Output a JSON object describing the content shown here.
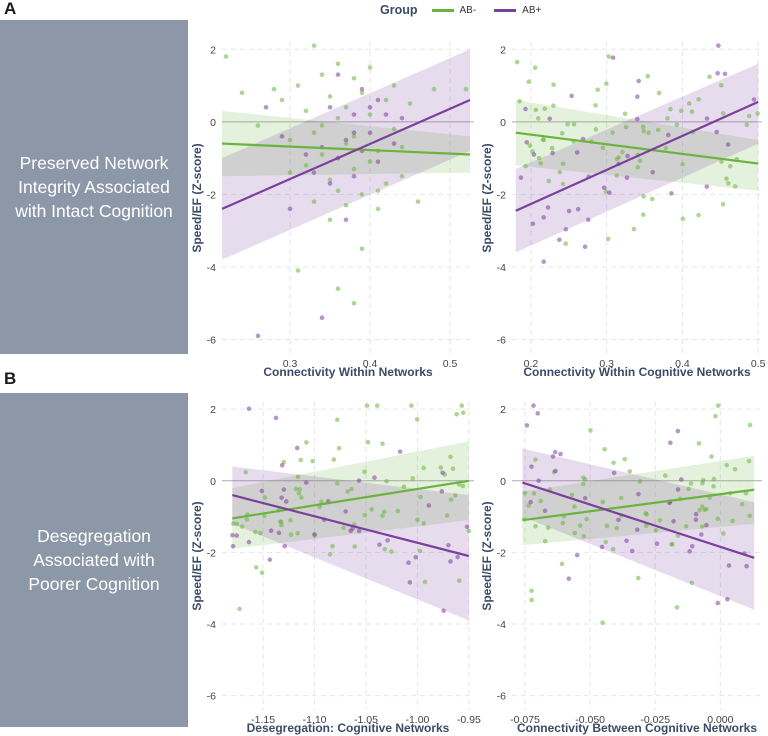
{
  "panels": {
    "A": {
      "letter": "A",
      "description": "Preserved Network Integrity Associated with Intact Cognition"
    },
    "B": {
      "letter": "B",
      "description": "Desegregation Associated with Poorer Cognition"
    }
  },
  "legend": {
    "title": "Group",
    "items": [
      {
        "label": "AB-",
        "color": "#6ab43e"
      },
      {
        "label": "AB+",
        "color": "#7b3f9e"
      }
    ]
  },
  "chart_data": [
    {
      "type": "scatter",
      "xlabel": "Connectivity Within Networks",
      "ylabel": "Speed/EF (Z-score)",
      "xlim": [
        0.215,
        0.53
      ],
      "ylim": [
        -6.4,
        2.2
      ],
      "xticks": [
        0.3,
        0.4,
        0.5
      ],
      "xtick_labels": [
        "0.3",
        "0.4",
        "0.5"
      ],
      "yticks": [
        2,
        0,
        -2,
        -4,
        -6
      ],
      "ytick_labels": [
        "2",
        "0",
        "-2",
        "-4",
        "-6"
      ],
      "series": [
        {
          "name": "AB-",
          "color": "#6ab43e",
          "fit": {
            "x": [
              0.215,
              0.525
            ],
            "y": [
              -0.6,
              -0.9
            ]
          },
          "band_upper": [
            0.3,
            -0.4
          ],
          "band_lower": [
            -1.5,
            -1.4
          ],
          "points": [
            [
              0.22,
              1.8
            ],
            [
              0.24,
              0.8
            ],
            [
              0.26,
              -0.1
            ],
            [
              0.28,
              0.9
            ],
            [
              0.29,
              0.6
            ],
            [
              0.3,
              -0.5
            ],
            [
              0.31,
              1.0
            ],
            [
              0.32,
              0.3
            ],
            [
              0.32,
              -1.2
            ],
            [
              0.33,
              2.1
            ],
            [
              0.33,
              -0.3
            ],
            [
              0.34,
              1.3
            ],
            [
              0.34,
              -0.9
            ],
            [
              0.35,
              0.7
            ],
            [
              0.35,
              -1.6
            ],
            [
              0.35,
              -2.7
            ],
            [
              0.36,
              1.6
            ],
            [
              0.36,
              0.1
            ],
            [
              0.36,
              -1.9
            ],
            [
              0.37,
              0.4
            ],
            [
              0.37,
              -0.6
            ],
            [
              0.37,
              -2.3
            ],
            [
              0.38,
              1.2
            ],
            [
              0.38,
              -0.4
            ],
            [
              0.38,
              -1.3
            ],
            [
              0.39,
              0.8
            ],
            [
              0.39,
              -2.0
            ],
            [
              0.39,
              -3.5
            ],
            [
              0.4,
              1.5
            ],
            [
              0.4,
              0.2
            ],
            [
              0.4,
              -1.1
            ],
            [
              0.41,
              -0.8
            ],
            [
              0.41,
              -2.4
            ],
            [
              0.42,
              0.6
            ],
            [
              0.42,
              -1.7
            ],
            [
              0.43,
              1.0
            ],
            [
              0.43,
              -0.2
            ],
            [
              0.44,
              -1.5
            ],
            [
              0.45,
              0.5
            ],
            [
              0.46,
              -2.2
            ],
            [
              0.48,
              0.9
            ],
            [
              0.52,
              0.9
            ],
            [
              0.3,
              -1.4
            ],
            [
              0.31,
              -4.1
            ],
            [
              0.33,
              -2.2
            ],
            [
              0.34,
              -0.1
            ],
            [
              0.36,
              -4.6
            ],
            [
              0.38,
              -5.0
            ],
            [
              0.41,
              -1.9
            ],
            [
              0.44,
              -0.7
            ]
          ]
        },
        {
          "name": "AB+",
          "color": "#7b3f9e",
          "fit": {
            "x": [
              0.215,
              0.525
            ],
            "y": [
              -2.4,
              0.6
            ]
          },
          "band_upper": [
            -1.0,
            2.0
          ],
          "band_lower": [
            -3.8,
            -0.8
          ],
          "points": [
            [
              0.26,
              -5.9
            ],
            [
              0.29,
              -0.4
            ],
            [
              0.3,
              -2.4
            ],
            [
              0.32,
              -0.9
            ],
            [
              0.33,
              -1.4
            ],
            [
              0.34,
              -0.7
            ],
            [
              0.35,
              -1.7
            ],
            [
              0.35,
              0.4
            ],
            [
              0.36,
              -1.0
            ],
            [
              0.37,
              -0.5
            ],
            [
              0.37,
              -2.7
            ],
            [
              0.38,
              0.2
            ],
            [
              0.38,
              -0.3
            ],
            [
              0.38,
              -1.5
            ],
            [
              0.39,
              0.9
            ],
            [
              0.39,
              -0.8
            ],
            [
              0.4,
              0.4
            ],
            [
              0.4,
              -0.3
            ],
            [
              0.41,
              0.6
            ],
            [
              0.41,
              -1.1
            ],
            [
              0.42,
              0.2
            ],
            [
              0.43,
              -0.6
            ],
            [
              0.44,
              0.1
            ],
            [
              0.34,
              -5.4
            ],
            [
              0.27,
              0.4
            ],
            [
              0.36,
              1.3
            ]
          ]
        }
      ]
    },
    {
      "type": "scatter",
      "xlabel": "Connectivity Within Cognitive Networks",
      "ylabel": "Speed/EF (Z-score)",
      "xlim": [
        0.175,
        0.505
      ],
      "ylim": [
        -6.4,
        2.2
      ],
      "xticks": [
        0.2,
        0.3,
        0.4,
        0.5
      ],
      "xtick_labels": [
        "0.2",
        "0.3",
        "0.4",
        "0.5"
      ],
      "yticks": [
        2,
        0,
        -2,
        -4,
        -6
      ],
      "ytick_labels": [
        "2",
        "0",
        "-2",
        "-4",
        "-6"
      ],
      "series": [
        {
          "name": "AB-",
          "color": "#6ab43e",
          "fit": {
            "x": [
              0.18,
              0.5
            ],
            "y": [
              -0.3,
              -1.15
            ]
          },
          "band_upper": [
            0.6,
            -0.5
          ],
          "band_lower": [
            -1.2,
            -1.9
          ]
        },
        {
          "name": "AB+",
          "color": "#7b3f9e",
          "fit": {
            "x": [
              0.18,
              0.5
            ],
            "y": [
              -2.45,
              0.55
            ]
          },
          "band_upper": [
            -1.3,
            1.6
          ],
          "band_lower": [
            -3.6,
            -0.6
          ]
        }
      ]
    },
    {
      "type": "scatter",
      "xlabel": "Desegregation: Cognitive Networks",
      "ylabel": "Speed/EF (Z-score)",
      "xlim": [
        -1.19,
        -0.945
      ],
      "ylim": [
        -6.4,
        2.2
      ],
      "xticks": [
        -1.15,
        -1.1,
        -1.05,
        -1.0,
        -0.95
      ],
      "xtick_labels": [
        "-1.15",
        "-1.10",
        "-1.05",
        "-1.00",
        "-0.95"
      ],
      "yticks": [
        2,
        0,
        -2,
        -4,
        -6
      ],
      "ytick_labels": [
        "2",
        "0",
        "-2",
        "-4",
        "-6"
      ],
      "series": [
        {
          "name": "AB-",
          "color": "#6ab43e",
          "fit": {
            "x": [
              -1.18,
              -0.95
            ],
            "y": [
              -1.05,
              0.0
            ]
          },
          "band_upper": [
            -0.2,
            1.1
          ],
          "band_lower": [
            -1.9,
            -1.1
          ]
        },
        {
          "name": "AB+",
          "color": "#7b3f9e",
          "fit": {
            "x": [
              -1.18,
              -0.95
            ],
            "y": [
              -0.4,
              -2.1
            ]
          },
          "band_upper": [
            0.4,
            -0.4
          ],
          "band_lower": [
            -1.2,
            -3.9
          ]
        }
      ]
    },
    {
      "type": "scatter",
      "xlabel": "Connectivity Between Cognitive Networks",
      "ylabel": "Speed/EF (Z-score)",
      "xlim": [
        -0.08,
        0.016
      ],
      "ylim": [
        -6.4,
        2.2
      ],
      "xticks": [
        -0.075,
        -0.05,
        -0.025,
        0.0
      ],
      "xtick_labels": [
        "-0.075",
        "-0.050",
        "-0.025",
        "0.000"
      ],
      "yticks": [
        2,
        0,
        -2,
        -4,
        -6
      ],
      "ytick_labels": [
        "2",
        "0",
        "-2",
        "-4",
        "-6"
      ],
      "series": [
        {
          "name": "AB-",
          "color": "#6ab43e",
          "fit": {
            "x": [
              -0.076,
              0.013
            ],
            "y": [
              -1.1,
              -0.25
            ]
          },
          "band_upper": [
            -0.3,
            0.7
          ],
          "band_lower": [
            -1.8,
            -1.2
          ]
        },
        {
          "name": "AB+",
          "color": "#7b3f9e",
          "fit": {
            "x": [
              -0.076,
              0.013
            ],
            "y": [
              -0.05,
              -2.15
            ]
          },
          "band_upper": [
            0.9,
            -0.6
          ],
          "band_lower": [
            -1.0,
            -3.6
          ]
        }
      ]
    }
  ]
}
